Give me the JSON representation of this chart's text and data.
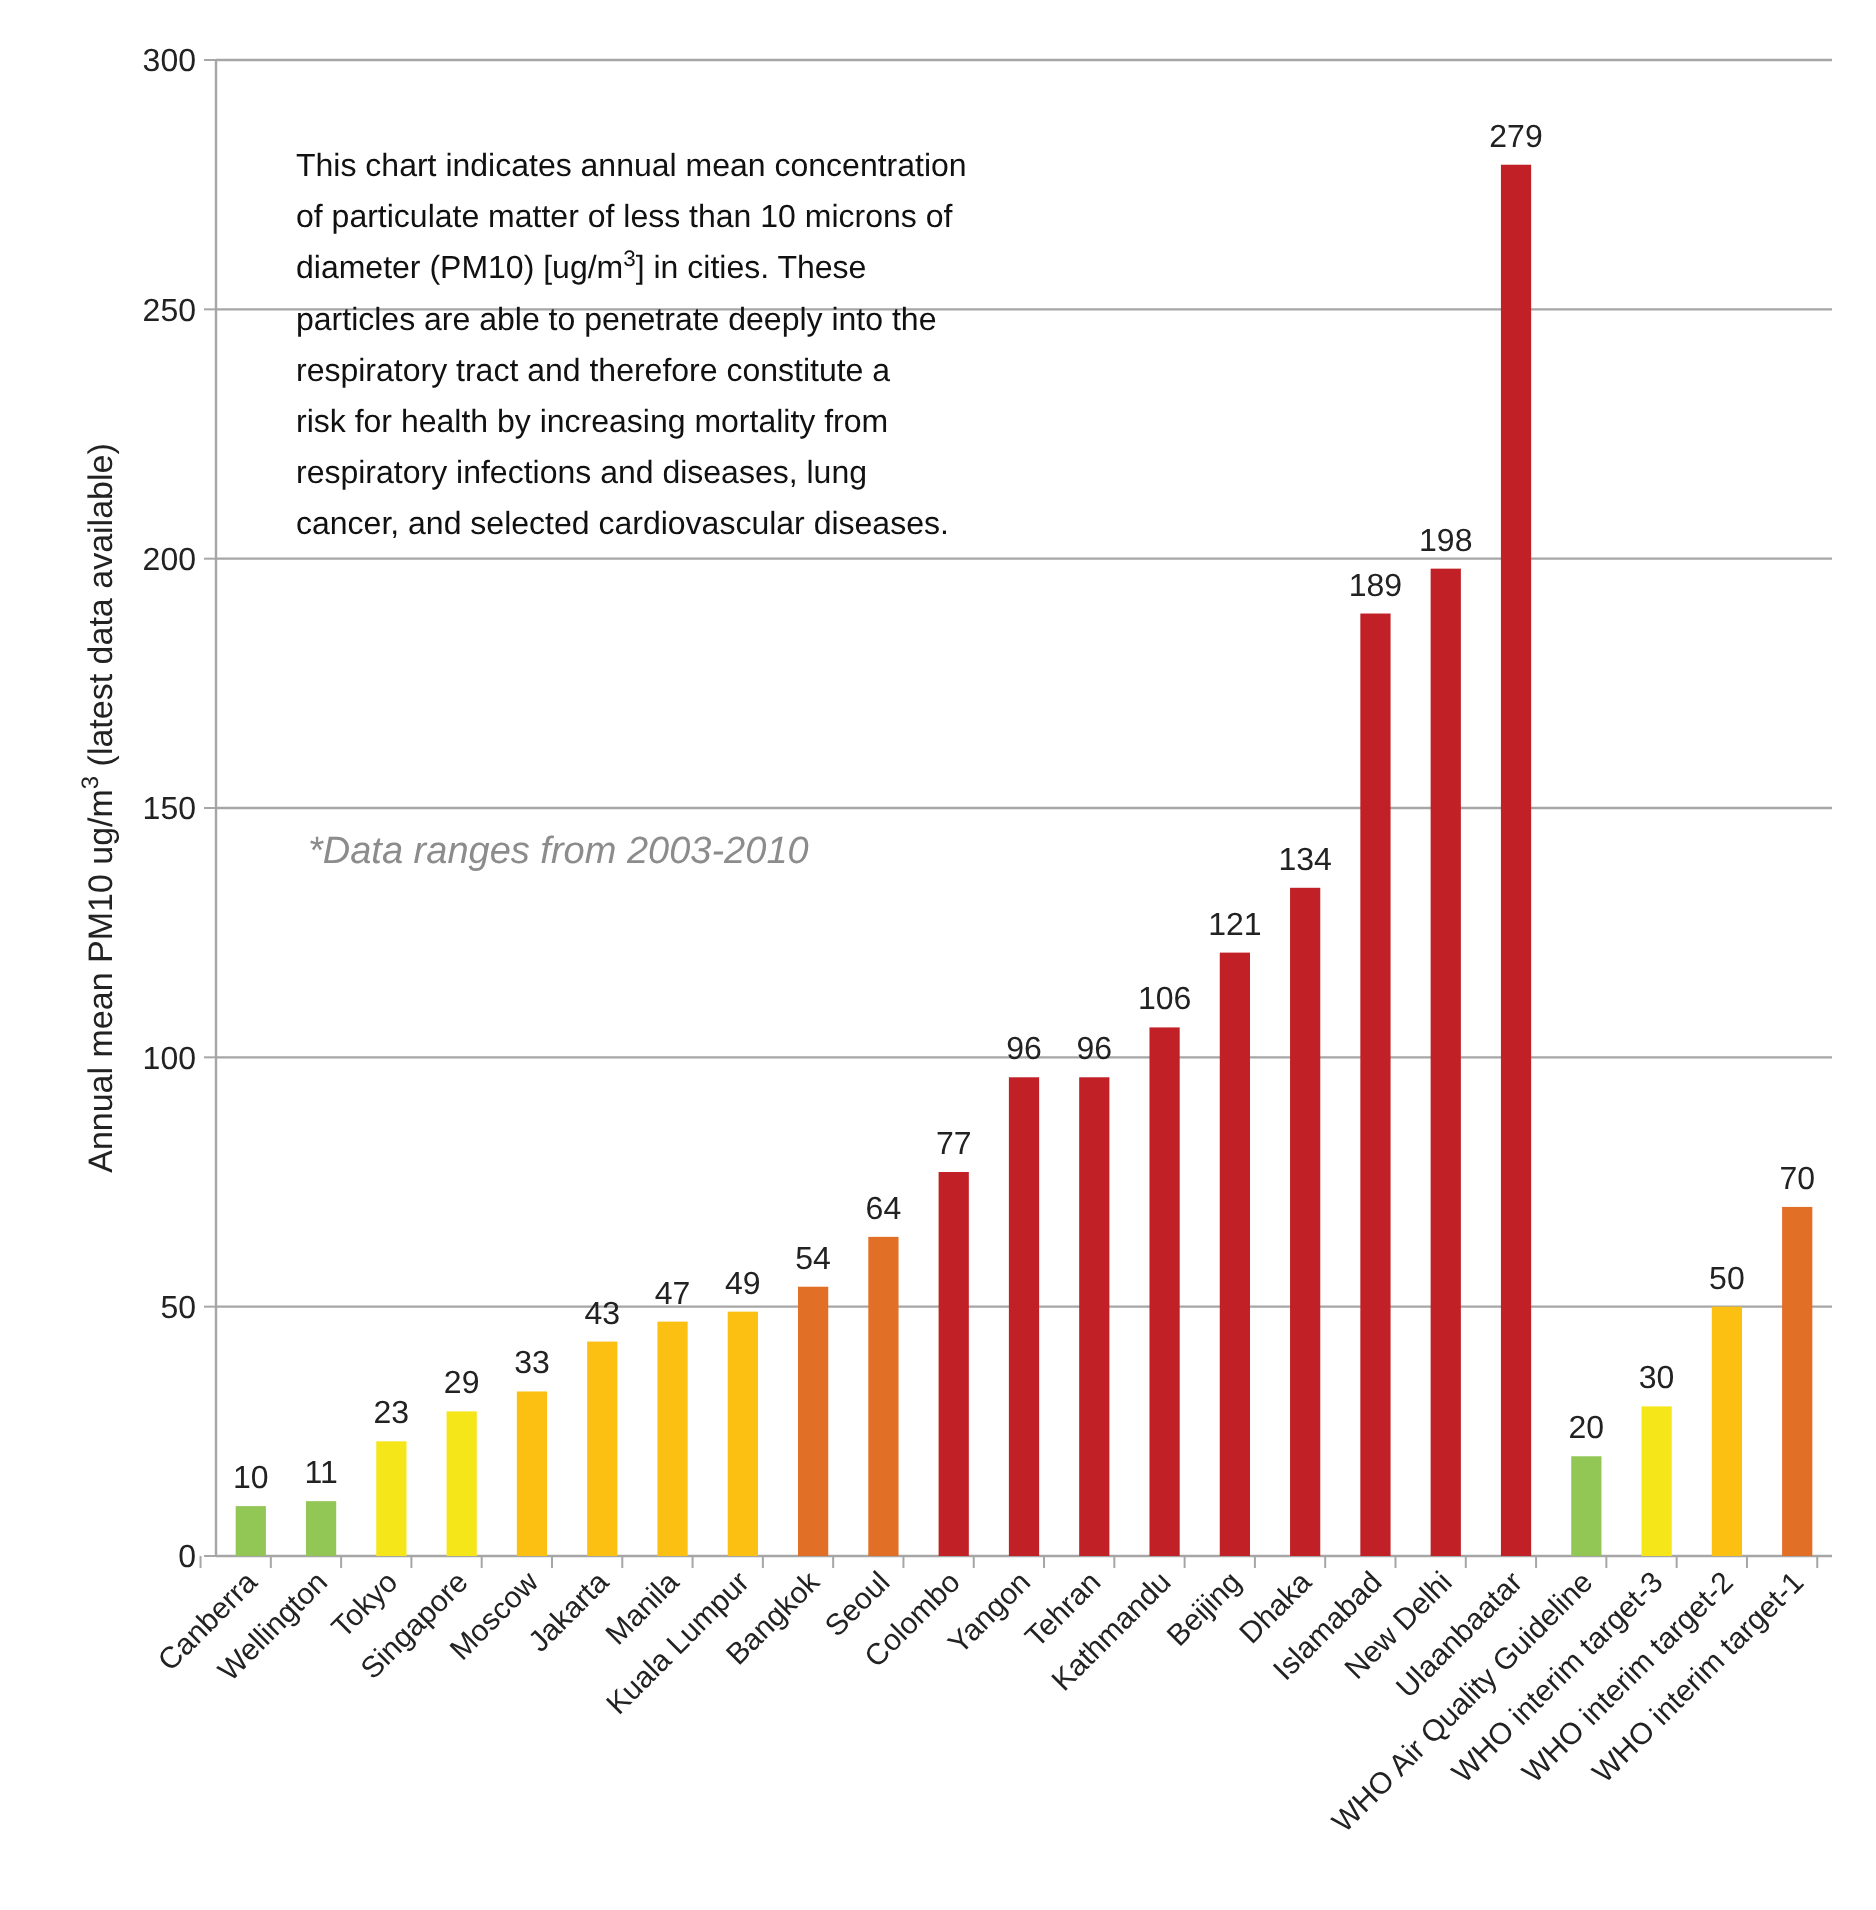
{
  "chart_data": {
    "type": "bar",
    "ylabel": "Annual mean PM10 ug/m$^{3}$ (latest data available)",
    "categories": [
      "Canberra",
      "Wellington",
      "Tokyo",
      "Singapore",
      "Moscow",
      "Jakarta",
      "Manila",
      "Kuala Lumpur",
      "Bangkok",
      "Seoul",
      "Colombo",
      "Yangon",
      "Tehran",
      "Kathmandu",
      "Beijing",
      "Dhaka",
      "Islamabad",
      "New Delhi",
      "Ulaanbaatar",
      "WHO Air Quality Guideline",
      "WHO interim target-3",
      "WHO interim target-2",
      "WHO interim target-1"
    ],
    "values": [
      10,
      11,
      23,
      29,
      33,
      43,
      47,
      49,
      54,
      64,
      77,
      96,
      96,
      106,
      121,
      134,
      189,
      198,
      279,
      20,
      30,
      50,
      70
    ],
    "colors": [
      "#92c655",
      "#92c655",
      "#f5e61a",
      "#f5e61a",
      "#fcc013",
      "#fcc013",
      "#fcc013",
      "#fcc013",
      "#e26f26",
      "#e26f26",
      "#c02026",
      "#c02026",
      "#c02026",
      "#c02026",
      "#c02026",
      "#c02026",
      "#c02026",
      "#c02026",
      "#c02026",
      "#92c655",
      "#f5e61a",
      "#fcc013",
      "#e26f26"
    ],
    "data_labels": true,
    "ylim": [
      0,
      300
    ],
    "yticks": [
      0,
      50,
      100,
      150,
      200,
      250,
      300
    ],
    "grid": "y",
    "annotations": [
      "This chart indicates annual mean concentration of particulate matter of less than 10 microns of diameter (PM10) [ug/m$^{3}$] in cities. These particles are able to penetrate deeply into the respiratory tract and therefore constitute a risk for health by increasing mortality from respiratory infections and diseases, lung cancer, and selected cardiovascular diseases.",
      "*Data ranges from 2003-2010"
    ]
  }
}
